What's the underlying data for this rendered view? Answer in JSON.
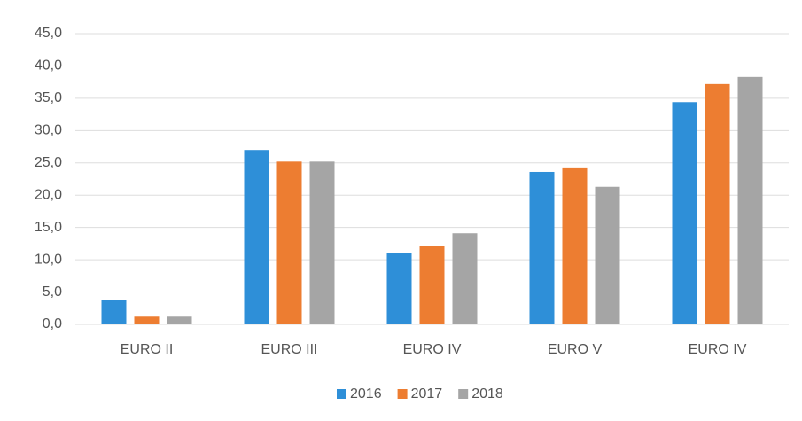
{
  "chart_data": {
    "type": "bar",
    "categories": [
      "EURO II",
      "EURO III",
      "EURO IV",
      "EURO V",
      "EURO IV"
    ],
    "series": [
      {
        "name": "2016",
        "color": "#2e8fd8",
        "values": [
          3.8,
          27.0,
          11.1,
          23.6,
          34.4
        ]
      },
      {
        "name": "2017",
        "color": "#ed7d31",
        "values": [
          1.2,
          25.2,
          12.2,
          24.3,
          37.2
        ]
      },
      {
        "name": "2018",
        "color": "#a5a5a5",
        "values": [
          1.2,
          25.2,
          14.1,
          21.3,
          38.3
        ]
      }
    ],
    "ylim": [
      0,
      45
    ],
    "yticks": [
      {
        "value": 0,
        "label": "0,0"
      },
      {
        "value": 5,
        "label": "5,0"
      },
      {
        "value": 10,
        "label": "10,0"
      },
      {
        "value": 15,
        "label": "15,0"
      },
      {
        "value": 20,
        "label": "20,0"
      },
      {
        "value": 25,
        "label": "25,0"
      },
      {
        "value": 30,
        "label": "30,0"
      },
      {
        "value": 35,
        "label": "35,0"
      },
      {
        "value": 40,
        "label": "40,0"
      },
      {
        "value": 45,
        "label": "45,0"
      }
    ],
    "grid": true,
    "legend": "bottom"
  }
}
